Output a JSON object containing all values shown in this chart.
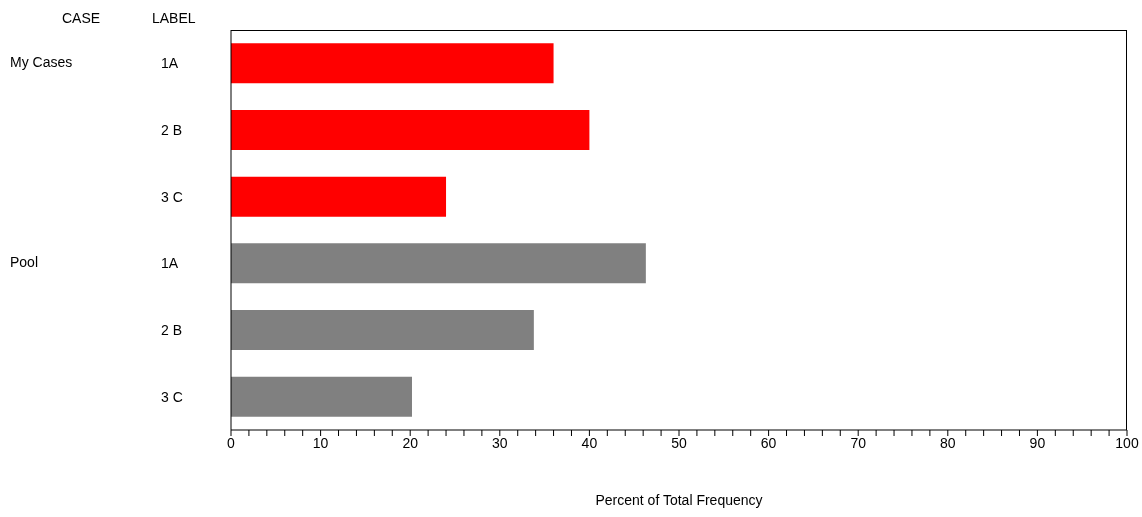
{
  "chart_data": {
    "type": "bar",
    "orientation": "horizontal",
    "xlabel": "Percent of Total Frequency",
    "categories": [
      "1A",
      "2 B",
      "3 C",
      "1A",
      "2 B",
      "3 C"
    ],
    "values": [
      36,
      40,
      24,
      46.3,
      33.8,
      20.2
    ],
    "colors": [
      "#ff0000",
      "#ff0000",
      "#ff0000",
      "#808080",
      "#808080",
      "#808080"
    ],
    "annotations": [
      "CASE",
      "LABEL",
      "My Cases",
      "Pool"
    ],
    "xlim": [
      0,
      100
    ],
    "xticks": [
      0,
      {
        "value": 2,
        "label": null
      },
      {
        "value": 4,
        "label": null
      },
      {
        "value": 6,
        "label": null
      },
      {
        "value": 8,
        "label": null
      },
      10,
      {
        "value": 12,
        "label": null
      },
      {
        "value": 14,
        "label": null
      },
      {
        "value": 16,
        "label": null
      },
      {
        "value": 18,
        "label": null
      },
      20,
      {
        "value": 22,
        "label": null
      },
      {
        "value": 24,
        "label": null
      },
      {
        "value": 26,
        "label": null
      },
      {
        "value": 28,
        "label": null
      },
      30,
      {
        "value": 32,
        "label": null
      },
      {
        "value": 34,
        "label": null
      },
      {
        "value": 36,
        "label": null
      },
      {
        "value": 38,
        "label": null
      },
      40,
      {
        "value": 42,
        "label": null
      },
      {
        "value": 44,
        "label": null
      },
      {
        "value": 46,
        "label": null
      },
      {
        "value": 48,
        "label": null
      },
      50,
      {
        "value": 52,
        "label": null
      },
      {
        "value": 54,
        "label": null
      },
      {
        "value": 56,
        "label": null
      },
      {
        "value": 58,
        "label": null
      },
      60,
      {
        "value": 62,
        "label": null
      },
      {
        "value": 64,
        "label": null
      },
      {
        "value": 66,
        "label": null
      },
      {
        "value": 68,
        "label": null
      },
      70,
      {
        "value": 72,
        "label": null
      },
      {
        "value": 74,
        "label": null
      },
      {
        "value": 76,
        "label": null
      },
      {
        "value": 78,
        "label": null
      },
      80,
      {
        "value": 82,
        "label": null
      },
      {
        "value": 84,
        "label": null
      },
      {
        "value": 86,
        "label": null
      },
      {
        "value": 88,
        "label": null
      },
      90,
      {
        "value": 92,
        "label": null
      },
      {
        "value": 94,
        "label": null
      },
      {
        "value": 96,
        "label": null
      },
      {
        "value": 98,
        "label": null
      },
      100
    ],
    "grid": false,
    "legend": false
  }
}
